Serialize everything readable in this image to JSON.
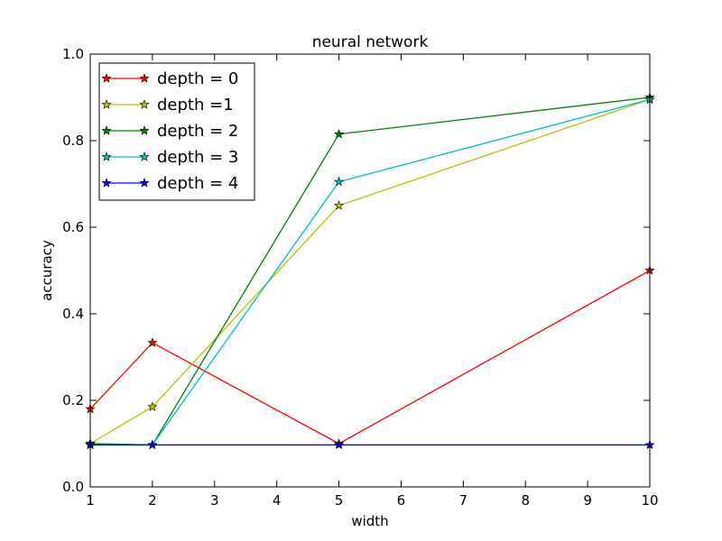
{
  "chart_data": {
    "type": "line",
    "title": "neural network",
    "xlabel": "width",
    "ylabel": "accuracy",
    "xlim": [
      1,
      10
    ],
    "ylim": [
      0.0,
      1.0
    ],
    "xticks": [
      "1",
      "2",
      "3",
      "4",
      "5",
      "6",
      "7",
      "8",
      "9",
      "10"
    ],
    "yticks": [
      "0.0",
      "0.2",
      "0.4",
      "0.6",
      "0.8",
      "1.0"
    ],
    "grid": false,
    "legend_position": "upper-left",
    "marker": "star",
    "x": [
      1,
      2,
      5,
      10
    ],
    "series": [
      {
        "name": "depth = 0",
        "color": "#ff0000",
        "values": [
          0.18,
          0.333,
          0.1,
          0.5
        ]
      },
      {
        "name": "depth =1",
        "color": "#bfbf00",
        "values": [
          0.1,
          0.185,
          0.65,
          0.895
        ]
      },
      {
        "name": "depth = 2",
        "color": "#008000",
        "values": [
          0.1,
          0.097,
          0.815,
          0.9
        ]
      },
      {
        "name": "depth = 3",
        "color": "#00bfbf",
        "values": [
          0.097,
          0.097,
          0.705,
          0.895
        ]
      },
      {
        "name": "depth = 4",
        "color": "#0000ff",
        "values": [
          0.097,
          0.097,
          0.097,
          0.097
        ]
      }
    ]
  }
}
